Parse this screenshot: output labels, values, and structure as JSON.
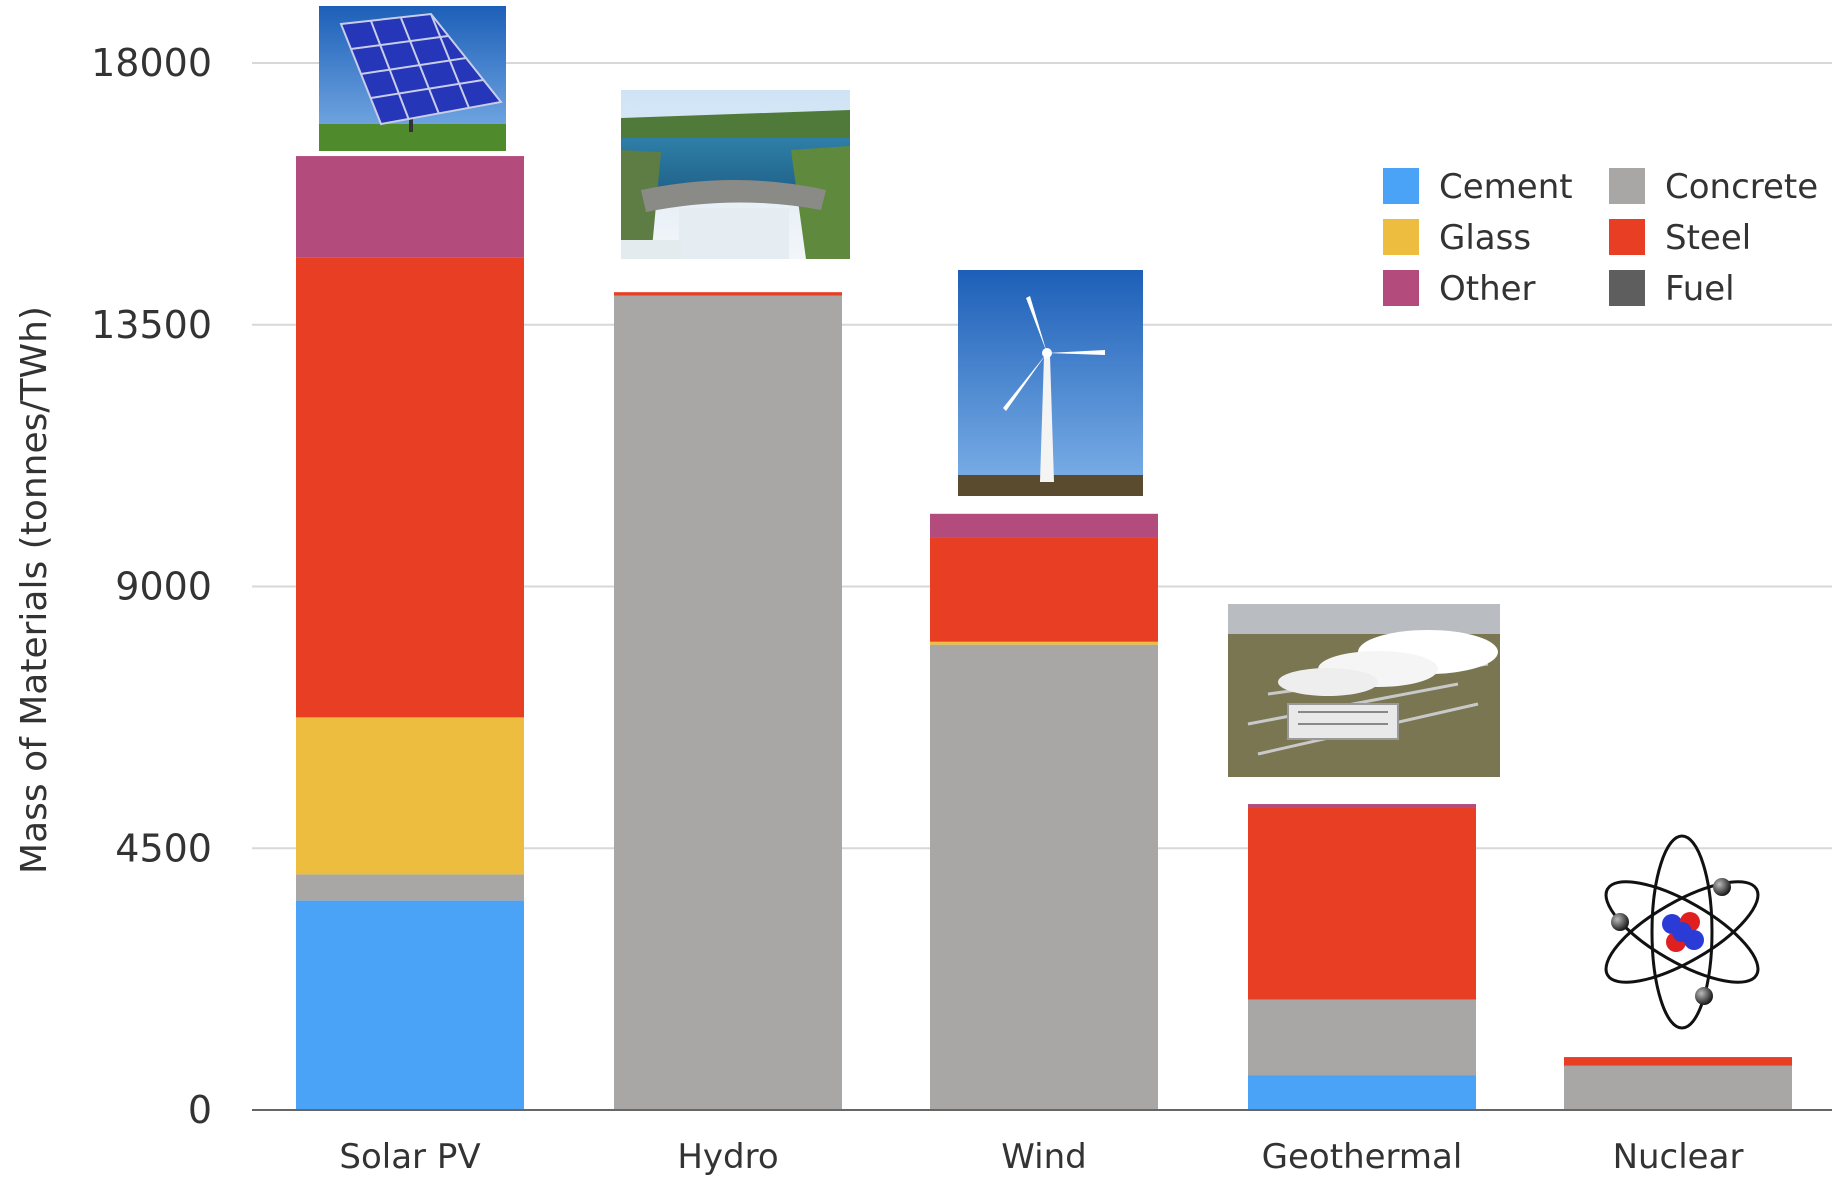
{
  "chart_data": {
    "type": "bar",
    "stacked": true,
    "title": "",
    "xlabel": "",
    "ylabel": "Mass of Materials (tonnes/TWh)",
    "ylim": [
      0,
      18000
    ],
    "yticks": [
      0,
      4500,
      9000,
      13500,
      18000
    ],
    "grid": true,
    "legend_position": "top-right",
    "categories": [
      "Solar PV",
      "Hydro",
      "Wind",
      "Geothermal",
      "Nuclear"
    ],
    "series": [
      {
        "name": "Cement",
        "color": "#4aa3f7",
        "values": [
          3600,
          0,
          0,
          600,
          0
        ]
      },
      {
        "name": "Concrete",
        "color": "#a9a7a5",
        "values": [
          450,
          14000,
          8000,
          1300,
          760
        ]
      },
      {
        "name": "Glass",
        "color": "#ecbd3f",
        "values": [
          2700,
          0,
          50,
          0,
          0
        ]
      },
      {
        "name": "Steel",
        "color": "#e83f24",
        "values": [
          7900,
          60,
          1800,
          3300,
          150
        ]
      },
      {
        "name": "Other",
        "color": "#b34b7d",
        "values": [
          1750,
          0,
          400,
          60,
          0
        ]
      },
      {
        "name": "Fuel",
        "color": "#5e5e5e",
        "values": [
          0,
          0,
          0,
          0,
          0
        ]
      }
    ],
    "legend_order": [
      "Cement",
      "Concrete",
      "Glass",
      "Steel",
      "Other",
      "Fuel"
    ],
    "pictures": [
      {
        "category": "Solar PV",
        "icon": "solar-panel-picture"
      },
      {
        "category": "Hydro",
        "icon": "hydro-dam-picture"
      },
      {
        "category": "Wind",
        "icon": "wind-turbine-picture"
      },
      {
        "category": "Geothermal",
        "icon": "geothermal-plant-picture"
      },
      {
        "category": "Nuclear",
        "icon": "atom-icon"
      }
    ]
  }
}
